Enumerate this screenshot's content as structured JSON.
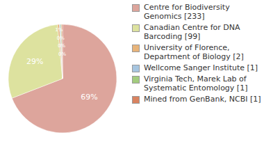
{
  "chart_data": {
    "type": "pie",
    "categories": [
      "Centre for Biodiversity Genomics [233]",
      "Canadian Centre for DNA Barcoding [99]",
      "University of Florence, Department of Biology [2]",
      "Wellcome Sanger Institute [1]",
      "Virginia Tech, Marek Lab of Systematic Entomology [1]",
      "Mined from GenBank, NCBI [1]"
    ],
    "values": [
      233,
      99,
      2,
      1,
      1,
      1
    ],
    "value_labels": [
      "69%",
      "29%",
      "1%",
      "0%",
      "0%",
      "0%"
    ],
    "colors": [
      "#dda59c",
      "#dde29f",
      "#e8b47a",
      "#a6c5e0",
      "#a3cc7e",
      "#d98360"
    ],
    "legend": "right",
    "data_labels": true
  }
}
